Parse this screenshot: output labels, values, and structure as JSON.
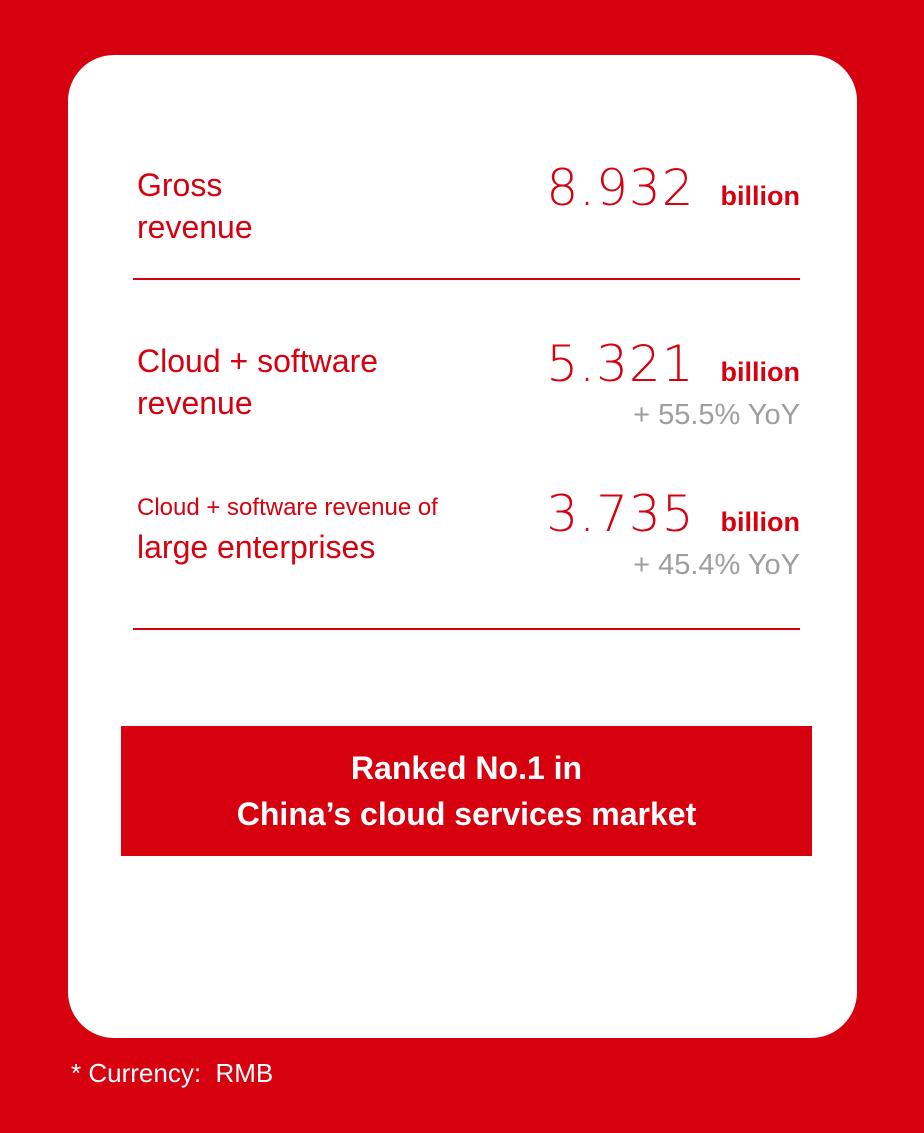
{
  "page": {
    "background_color": "#d7000f",
    "card_color": "#ffffff",
    "accent_color": "#d7000f",
    "muted_color": "#9e9e9e"
  },
  "metrics": [
    {
      "label_lines": [
        "Gross",
        "revenue"
      ],
      "value": "8.932",
      "unit": "billion",
      "yoy": ""
    },
    {
      "label_lines": [
        "Cloud + software",
        "revenue"
      ],
      "value": "5.321",
      "unit": "billion",
      "yoy": "+ 55.5% YoY"
    },
    {
      "label_lines": [
        "Cloud + software revenue of",
        "large enterprises"
      ],
      "value": "3.735",
      "unit": "billion",
      "yoy": "+ 45.4% YoY"
    }
  ],
  "banner": {
    "lines": [
      "Ranked No.1 in",
      "China’s cloud services market"
    ]
  },
  "footer": {
    "text": "* Currency:  RMB"
  }
}
